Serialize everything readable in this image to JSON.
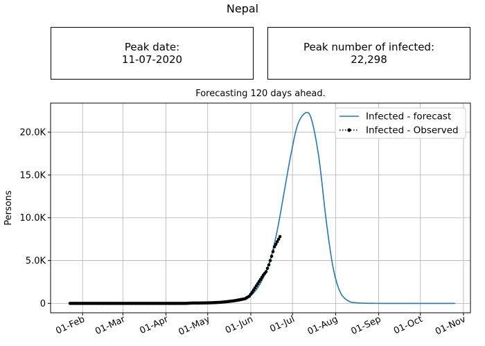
{
  "suptitle": "Nepal",
  "peak_date_box": {
    "label": "Peak date:",
    "value": "11-07-2020"
  },
  "peak_infected_box": {
    "label": "Peak number of infected:",
    "value": "22,298"
  },
  "chart_data": {
    "type": "line",
    "title": "Forecasting 120 days ahead.",
    "xlabel": "",
    "ylabel": "Persons",
    "x_type": "date",
    "x_ticks": [
      "2020-02-01",
      "2020-03-01",
      "2020-04-01",
      "2020-05-01",
      "2020-06-01",
      "2020-07-01",
      "2020-08-01",
      "2020-09-01",
      "2020-10-01",
      "2020-11-01"
    ],
    "x_tick_labels": [
      "01-Feb",
      "01-Mar",
      "01-Apr",
      "01-May",
      "01-Jun",
      "01-Jul",
      "01-Aug",
      "01-Sep",
      "01-Oct",
      "01-Nov"
    ],
    "xlim": [
      "2020-01-09",
      "2020-11-06"
    ],
    "y_ticks": [
      0,
      5000,
      10000,
      15000,
      20000
    ],
    "y_tick_labels": [
      "0",
      "5.0K",
      "10.0K",
      "15.0K",
      "20.0K"
    ],
    "ylim": [
      -1100,
      23400
    ],
    "grid": true,
    "legend_position": "upper-right",
    "series": [
      {
        "name": "Infected - forecast",
        "style": "line",
        "color": "#1f77b4",
        "points": [
          [
            "2020-05-25",
            300
          ],
          [
            "2020-05-31",
            800
          ],
          [
            "2020-06-05",
            1600
          ],
          [
            "2020-06-10",
            3000
          ],
          [
            "2020-06-15",
            5100
          ],
          [
            "2020-06-20",
            8500
          ],
          [
            "2020-06-25",
            13000
          ],
          [
            "2020-06-30",
            17500
          ],
          [
            "2020-07-05",
            21000
          ],
          [
            "2020-07-11",
            22298
          ],
          [
            "2020-07-15",
            21300
          ],
          [
            "2020-07-20",
            17000
          ],
          [
            "2020-07-25",
            10000
          ],
          [
            "2020-07-29",
            5300
          ],
          [
            "2020-08-01",
            2900
          ],
          [
            "2020-08-05",
            1100
          ],
          [
            "2020-08-10",
            300
          ],
          [
            "2020-08-15",
            80
          ],
          [
            "2020-08-25",
            10
          ],
          [
            "2020-09-15",
            0
          ],
          [
            "2020-10-26",
            0
          ]
        ]
      },
      {
        "name": "Infected - Observed",
        "style": "dotted-markers",
        "color": "#000000",
        "points": [
          [
            "2020-01-23",
            0
          ],
          [
            "2020-02-15",
            0
          ],
          [
            "2020-03-15",
            0
          ],
          [
            "2020-04-15",
            0
          ],
          [
            "2020-04-20",
            40
          ],
          [
            "2020-04-25",
            40
          ],
          [
            "2020-05-01",
            60
          ],
          [
            "2020-05-05",
            80
          ],
          [
            "2020-05-10",
            120
          ],
          [
            "2020-05-15",
            200
          ],
          [
            "2020-05-20",
            300
          ],
          [
            "2020-05-25",
            450
          ],
          [
            "2020-05-28",
            550
          ],
          [
            "2020-05-31",
            850
          ],
          [
            "2020-06-02",
            1300
          ],
          [
            "2020-06-04",
            1800
          ],
          [
            "2020-06-06",
            2300
          ],
          [
            "2020-06-08",
            2800
          ],
          [
            "2020-06-10",
            3300
          ],
          [
            "2020-06-12",
            3700
          ],
          [
            "2020-06-14",
            4500
          ],
          [
            "2020-06-16",
            5500
          ],
          [
            "2020-06-18",
            6600
          ],
          [
            "2020-06-20",
            7200
          ],
          [
            "2020-06-22",
            7800
          ]
        ]
      }
    ]
  }
}
